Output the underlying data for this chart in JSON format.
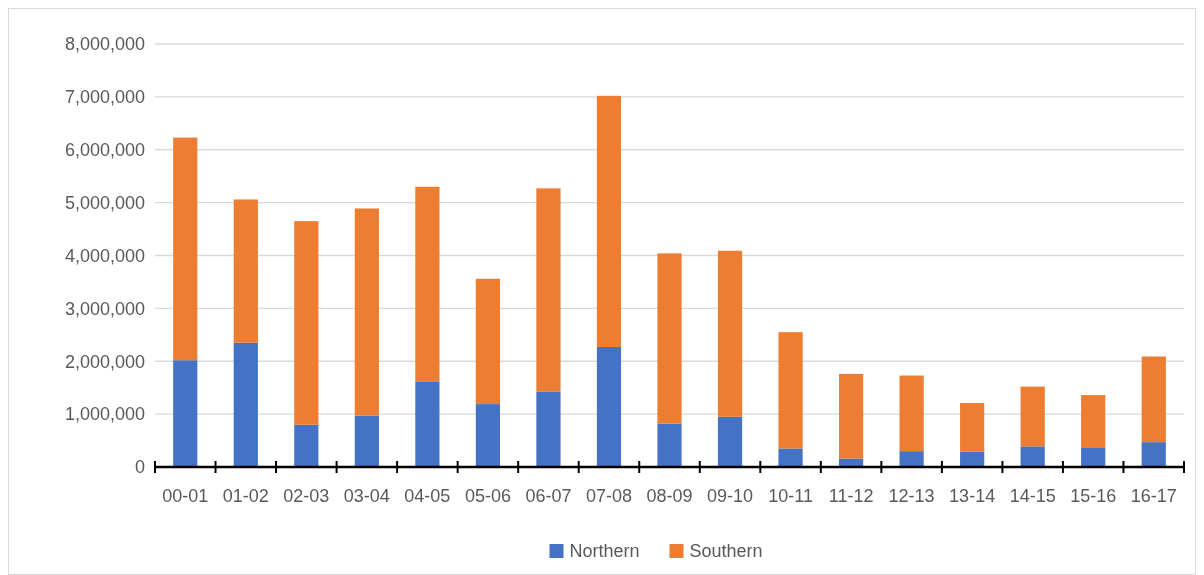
{
  "chart_data": {
    "type": "bar",
    "stacked": true,
    "categories": [
      "00-01",
      "01-02",
      "02-03",
      "03-04",
      "04-05",
      "05-06",
      "06-07",
      "07-08",
      "08-09",
      "09-10",
      "10-11",
      "11-12",
      "12-13",
      "13-14",
      "14-15",
      "15-16",
      "16-17"
    ],
    "series": [
      {
        "name": "Northern",
        "color": "#4472c4",
        "values": [
          2020000,
          2350000,
          800000,
          970000,
          1620000,
          1190000,
          1430000,
          2270000,
          820000,
          950000,
          350000,
          160000,
          300000,
          290000,
          390000,
          360000,
          470000
        ]
      },
      {
        "name": "Southern",
        "color": "#ed7d31",
        "values": [
          4210000,
          2710000,
          3850000,
          3920000,
          3680000,
          2370000,
          3840000,
          4750000,
          3220000,
          3140000,
          2200000,
          1600000,
          1430000,
          920000,
          1130000,
          1000000,
          1620000
        ]
      }
    ],
    "ylim": [
      0,
      8000000
    ],
    "yticks": [
      {
        "value": 0,
        "label": "0"
      },
      {
        "value": 1000000,
        "label": "1,000,000"
      },
      {
        "value": 2000000,
        "label": "2,000,000"
      },
      {
        "value": 3000000,
        "label": "3,000,000"
      },
      {
        "value": 4000000,
        "label": "4,000,000"
      },
      {
        "value": 5000000,
        "label": "5,000,000"
      },
      {
        "value": 6000000,
        "label": "6,000,000"
      },
      {
        "value": 7000000,
        "label": "7,000,000"
      },
      {
        "value": 8000000,
        "label": "8,000,000"
      }
    ],
    "grid": "y",
    "legend": "bottom"
  }
}
